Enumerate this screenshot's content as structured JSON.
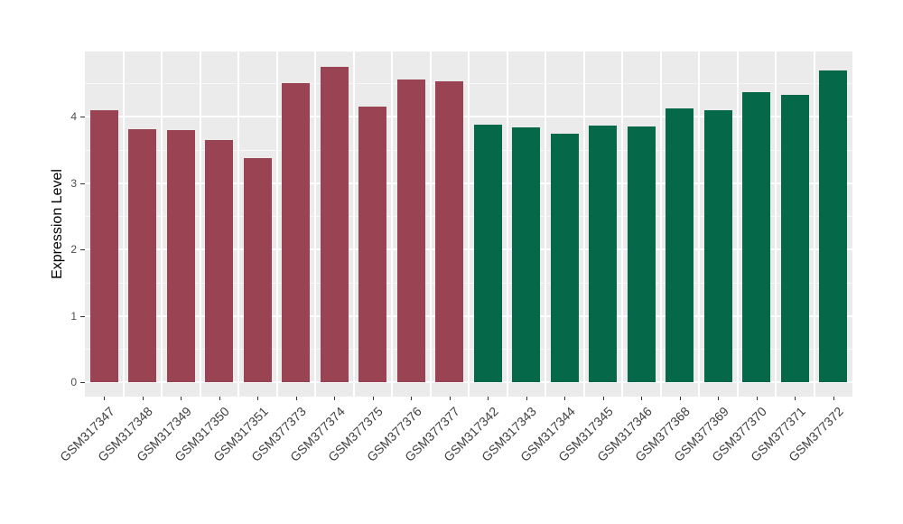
{
  "figure": {
    "background": "#FFFFFF",
    "panel_background": "#EBEBEB",
    "grid_color": "#FFFFFF",
    "axis_text_color": "#4D4D4D",
    "axis_title_color": "#000000",
    "tick_color": "#333333"
  },
  "chart_data": {
    "type": "bar",
    "title": "",
    "xlabel": "",
    "ylabel": "Expression Level",
    "ylim": [
      -0.2,
      5.0
    ],
    "y_ticks": [
      0,
      1,
      2,
      3,
      4
    ],
    "y_minor_ticks": [
      0.5,
      1.5,
      2.5,
      3.5,
      4.5
    ],
    "grid": true,
    "legend_position": "none",
    "categories": [
      "GSM317347",
      "GSM317348",
      "GSM317349",
      "GSM317350",
      "GSM317351",
      "GSM377373",
      "GSM377374",
      "GSM377375",
      "GSM377376",
      "GSM377377",
      "GSM317342",
      "GSM317343",
      "GSM317344",
      "GSM317345",
      "GSM317346",
      "GSM377368",
      "GSM377369",
      "GSM377370",
      "GSM377371",
      "GSM377372"
    ],
    "values": [
      4.1,
      3.81,
      3.8,
      3.64,
      3.38,
      4.51,
      4.75,
      4.15,
      4.56,
      4.53,
      3.88,
      3.84,
      3.74,
      3.86,
      3.85,
      4.12,
      4.1,
      4.37,
      4.33,
      4.7
    ],
    "group_split_index": 10,
    "group_colors": {
      "left_group": "#9A4352",
      "right_group": "#046849"
    }
  }
}
